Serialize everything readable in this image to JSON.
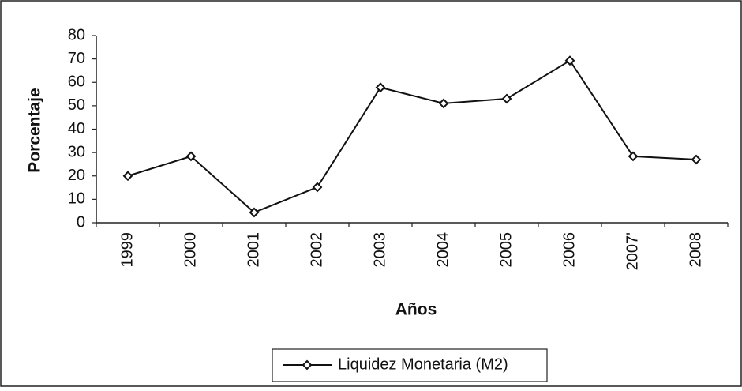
{
  "chart_data": {
    "type": "line",
    "xlabel": "Años",
    "ylabel": "Porcentaje",
    "categories": [
      "1999",
      "2000",
      "2001",
      "2002",
      "2003",
      "2004",
      "2005",
      "2006",
      "2007'",
      "2008"
    ],
    "series": [
      {
        "name": "Liquidez Monetaria (M2)",
        "color": "#111111",
        "values": [
          20,
          28.4,
          4.4,
          15.2,
          57.8,
          51,
          53,
          69.3,
          28.4,
          27
        ]
      }
    ],
    "ylim": [
      0,
      80
    ],
    "yticks": [
      0,
      10,
      20,
      30,
      40,
      50,
      60,
      70,
      80
    ],
    "grid": false,
    "legend": "bottom"
  }
}
